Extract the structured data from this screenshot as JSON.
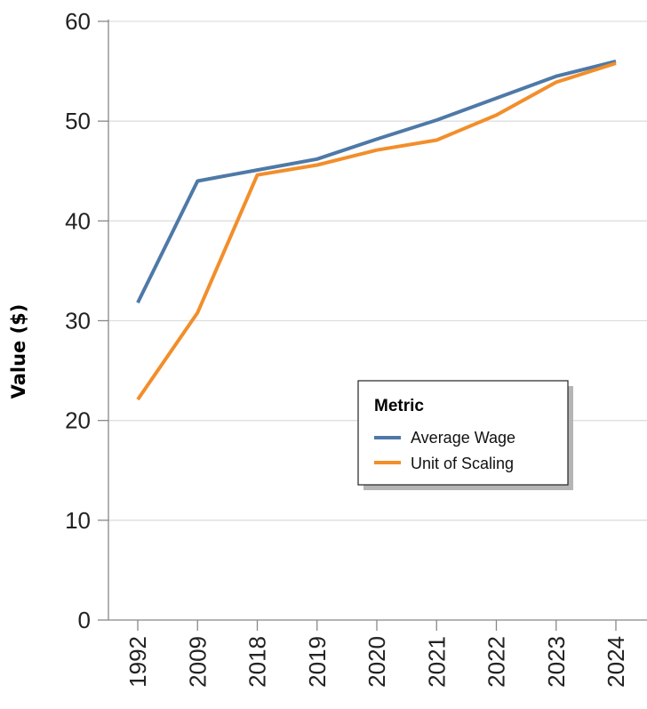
{
  "chart_data": {
    "type": "line",
    "title": "",
    "xlabel": "",
    "ylabel": "Value ($)",
    "categories": [
      "1992",
      "2009",
      "2018",
      "2019",
      "2020",
      "2021",
      "2022",
      "2023",
      "2024"
    ],
    "ylim": [
      0,
      60
    ],
    "yticks": [
      0,
      10,
      20,
      30,
      40,
      50,
      60
    ],
    "grid": true,
    "legend": {
      "title": "Metric",
      "placement": "center-right"
    },
    "series": [
      {
        "name": "Average Wage",
        "color": "#4e79a7",
        "values": [
          31.8,
          44.0,
          45.1,
          46.2,
          48.2,
          50.1,
          52.3,
          54.5,
          56.0
        ]
      },
      {
        "name": "Unit of Scaling",
        "color": "#f28e2b",
        "values": [
          22.1,
          30.8,
          44.6,
          45.6,
          47.1,
          48.1,
          50.6,
          53.9,
          55.8
        ]
      }
    ]
  }
}
